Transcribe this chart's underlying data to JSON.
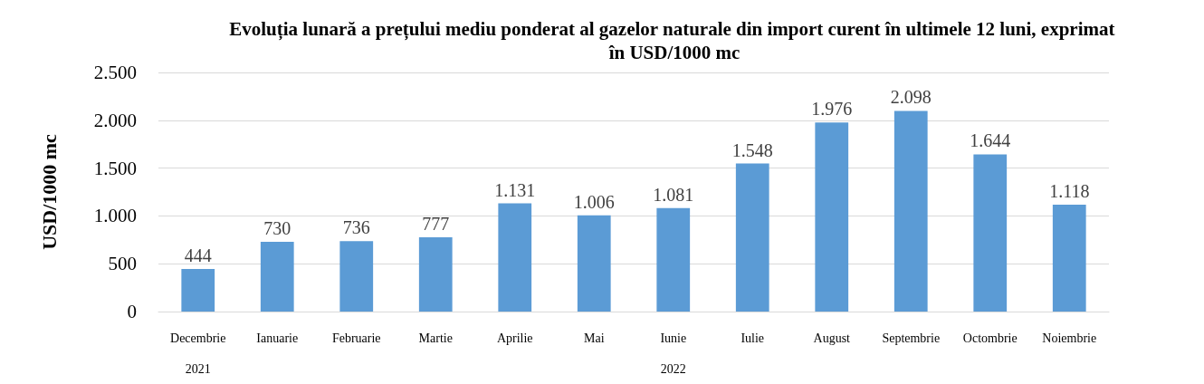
{
  "chart_data": {
    "type": "bar",
    "title": "Evoluția lunară a prețului mediu ponderat al gazelor naturale din import curent în ultimele 12 luni, exprimat în USD/1000 mc",
    "ylabel": "USD/1000 mc",
    "categories": [
      "Decembrie\n2021",
      "Ianuarie",
      "Februarie",
      "Martie",
      "Aprilie",
      "Mai",
      "Iunie\n2022",
      "Iulie",
      "August",
      "Septembrie",
      "Octombrie",
      "Noiembrie"
    ],
    "values": [
      444,
      730,
      736,
      777,
      1131,
      1006,
      1081,
      1548,
      1976,
      2098,
      1644,
      1118
    ],
    "value_labels": [
      "444",
      "730",
      "736",
      "777",
      "1.131",
      "1.006",
      "1.081",
      "1.548",
      "1.976",
      "2.098",
      "1.644",
      "1.118"
    ],
    "color": "#5b9bd5",
    "ylim": [
      0,
      2500
    ],
    "yticks": [
      0,
      {
        "value": 500,
        "label": "500"
      },
      {
        "value": 1000,
        "label": "1.000"
      },
      {
        "value": 1500,
        "label": "1.500"
      },
      {
        "value": 2000,
        "label": "2.000"
      },
      {
        "value": 2500,
        "label": "2.500"
      }
    ],
    "grid": "y"
  }
}
